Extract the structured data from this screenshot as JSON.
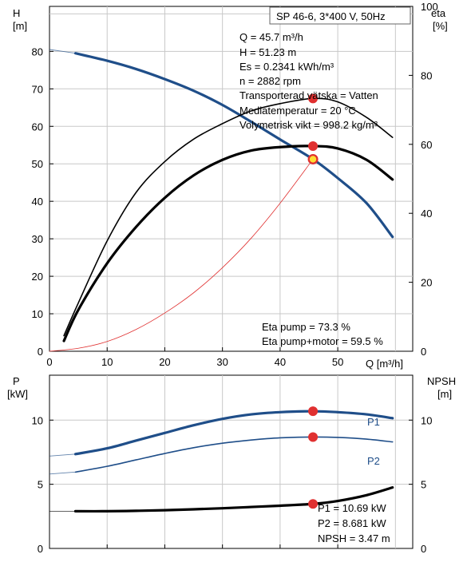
{
  "chart_data": [
    {
      "type": "line",
      "title": "SP 46-6, 3*400 V, 50Hz",
      "xlabel": "Q [m³/h]",
      "ylabel_left": [
        "H",
        "[m]"
      ],
      "ylabel_right": [
        "eta",
        "[%]"
      ],
      "xlim": [
        0,
        63
      ],
      "ylim_left": [
        0,
        92
      ],
      "ylim_right": [
        0,
        100
      ],
      "x_ticks": [
        0,
        10,
        20,
        30,
        40,
        50
      ],
      "y_ticks_left": [
        0,
        10,
        20,
        30,
        40,
        50,
        60,
        70,
        80
      ],
      "y_ticks_right": [
        0,
        20,
        40,
        60,
        80,
        100
      ],
      "grid": true,
      "series": [
        {
          "color": "#1f4e89",
          "axis": "left",
          "style": "thick-light-start",
          "points": [
            [
              0,
              80.5
            ],
            [
              4.5,
              79.5
            ],
            [
              10,
              77.5
            ],
            [
              15,
              75.3
            ],
            [
              20,
              72.6
            ],
            [
              25,
              69.5
            ],
            [
              30,
              65.7
            ],
            [
              35,
              61.2
            ],
            [
              40,
              56.5
            ],
            [
              45.7,
              51.23
            ],
            [
              50,
              46.2
            ],
            [
              55,
              39.5
            ],
            [
              59.5,
              30.5
            ]
          ]
        },
        {
          "color": "#000000",
          "axis": "right",
          "style": "thin",
          "points": [
            [
              2.5,
              4.5
            ],
            [
              5,
              14
            ],
            [
              10,
              32
            ],
            [
              15,
              46
            ],
            [
              20,
              55
            ],
            [
              25,
              61.5
            ],
            [
              30,
              66
            ],
            [
              35,
              69.7
            ],
            [
              40,
              71.8
            ],
            [
              45.7,
              73.3
            ],
            [
              50,
              72.3
            ],
            [
              55,
              67.8
            ],
            [
              59.5,
              62
            ]
          ]
        },
        {
          "color": "#000000",
          "axis": "right",
          "style": "thick",
          "points": [
            [
              2.5,
              3
            ],
            [
              5,
              12
            ],
            [
              10,
              25.5
            ],
            [
              15,
              36
            ],
            [
              20,
              44.5
            ],
            [
              25,
              51
            ],
            [
              30,
              55.5
            ],
            [
              35,
              58.2
            ],
            [
              40,
              59.2
            ],
            [
              45.7,
              59.5
            ],
            [
              50,
              58.8
            ],
            [
              55,
              55.5
            ],
            [
              59.5,
              49.8
            ]
          ]
        },
        {
          "color": "#e03030",
          "axis": "left",
          "style": "hair",
          "points": [
            [
              0,
              0
            ],
            [
              5,
              0.8
            ],
            [
              10,
              2.6
            ],
            [
              15,
              5.8
            ],
            [
              20,
              10.2
            ],
            [
              25,
              15.6
            ],
            [
              30,
              22.3
            ],
            [
              35,
              30.2
            ],
            [
              40,
              39.5
            ],
            [
              45.7,
              51.23
            ]
          ]
        }
      ],
      "markers": [
        {
          "axis": "left",
          "x": 45.7,
          "y": 51.23,
          "color": "#e03030",
          "fill": "#ffdd33"
        },
        {
          "axis": "right",
          "x": 45.7,
          "y": 73.3,
          "color": "#e03030"
        },
        {
          "axis": "right",
          "x": 45.7,
          "y": 59.5,
          "color": "#e03030"
        }
      ],
      "info_lines": [
        "Q = 45.7 m³/h",
        "H = 51.23 m",
        "Es = 0.2341 kWh/m³",
        "n = 2882 rpm",
        "Transporterad vätska = Vatten",
        "Mediatemperatur = 20 °C",
        "Volymetrisk vikt = 998.2 kg/m³"
      ],
      "eta_lines": [
        "Eta pump = 73.3 %",
        "Eta pump+motor = 59.5 %"
      ]
    },
    {
      "type": "line",
      "ylabel_left": [
        "P",
        "[kW]"
      ],
      "ylabel_right": [
        "NPSH",
        "[m]"
      ],
      "xlim": [
        0,
        63
      ],
      "ylim_left": [
        0,
        13.5
      ],
      "ylim_right": [
        0,
        13.5
      ],
      "y_ticks_left": [
        0,
        5,
        10
      ],
      "y_ticks_right": [
        0,
        5,
        10
      ],
      "grid": true,
      "series": [
        {
          "name": "P1",
          "color": "#1f4e89",
          "style": "thick-light-start",
          "points": [
            [
              0,
              7.2
            ],
            [
              4.5,
              7.35
            ],
            [
              10,
              7.8
            ],
            [
              15,
              8.4
            ],
            [
              20,
              9.0
            ],
            [
              25,
              9.6
            ],
            [
              30,
              10.1
            ],
            [
              35,
              10.45
            ],
            [
              40,
              10.62
            ],
            [
              45.7,
              10.69
            ],
            [
              50,
              10.62
            ],
            [
              55,
              10.45
            ],
            [
              59.5,
              10.15
            ]
          ]
        },
        {
          "name": "P2",
          "color": "#1f4e89",
          "style": "thin-light-start",
          "points": [
            [
              0,
              5.8
            ],
            [
              4.5,
              5.95
            ],
            [
              10,
              6.4
            ],
            [
              15,
              6.9
            ],
            [
              20,
              7.4
            ],
            [
              25,
              7.85
            ],
            [
              30,
              8.2
            ],
            [
              35,
              8.45
            ],
            [
              40,
              8.62
            ],
            [
              45.7,
              8.681
            ],
            [
              50,
              8.65
            ],
            [
              55,
              8.52
            ],
            [
              59.5,
              8.3
            ]
          ]
        },
        {
          "color": "#000000",
          "style": "thick-light-start",
          "points": [
            [
              0,
              2.9
            ],
            [
              4.5,
              2.9
            ],
            [
              10,
              2.9
            ],
            [
              15,
              2.93
            ],
            [
              20,
              2.98
            ],
            [
              25,
              3.05
            ],
            [
              30,
              3.13
            ],
            [
              35,
              3.23
            ],
            [
              40,
              3.33
            ],
            [
              45.7,
              3.47
            ],
            [
              50,
              3.7
            ],
            [
              55,
              4.15
            ],
            [
              59.5,
              4.75
            ]
          ]
        }
      ],
      "markers": [
        {
          "x": 45.7,
          "y": 10.69,
          "color": "#e03030"
        },
        {
          "x": 45.7,
          "y": 8.681,
          "color": "#e03030"
        },
        {
          "x": 45.7,
          "y": 3.47,
          "color": "#e03030"
        }
      ],
      "series_labels": [
        "P1",
        "P2"
      ],
      "info_lines": [
        "P1 = 10.69 kW",
        "P2 = 8.681 kW",
        "NPSH = 3.47 m"
      ]
    }
  ]
}
